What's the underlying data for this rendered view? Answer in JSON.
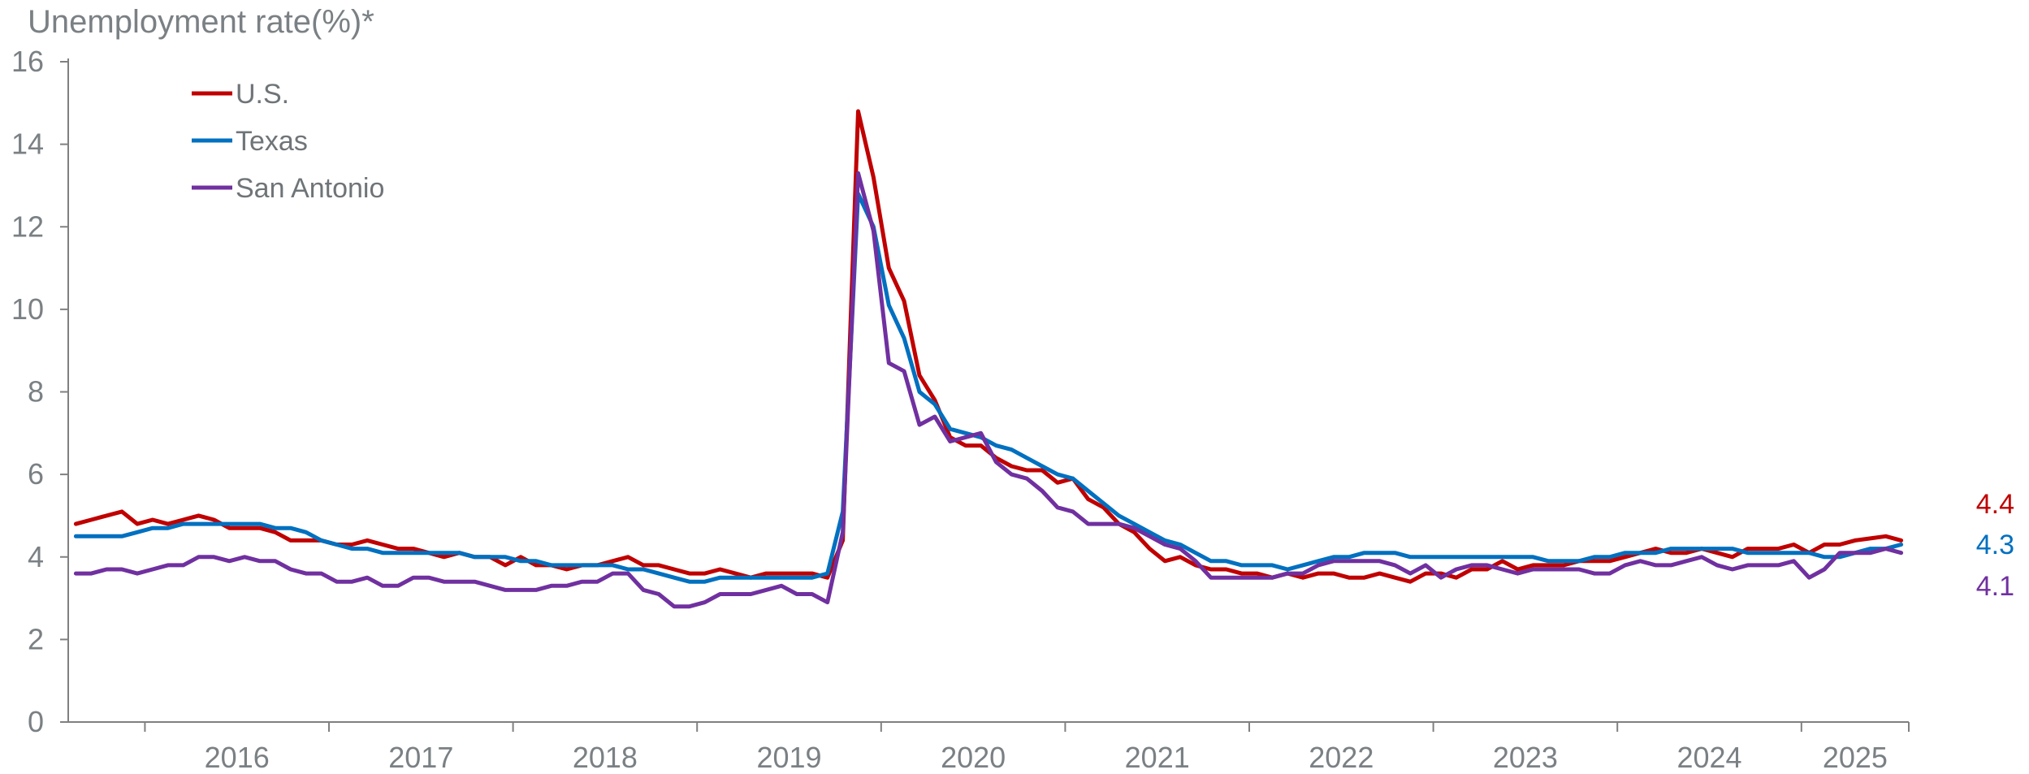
{
  "chart_data": {
    "type": "line",
    "title": "",
    "ylabel": "Unemployment rate(%)*",
    "xlabel": "",
    "ylim": [
      0,
      16
    ],
    "yticks": [
      "0",
      "2",
      "4",
      "6",
      "8",
      "10",
      "12",
      "14",
      "16"
    ],
    "x_start": "2015-08",
    "x_end": "2025-08",
    "xtick_labels": [
      "2016",
      "2017",
      "2018",
      "2019",
      "2020",
      "2021",
      "2022",
      "2023",
      "2024",
      "2025"
    ],
    "grid": false,
    "legend_position": "top-left",
    "series": [
      {
        "name": "U.S.",
        "color": "#c00000",
        "end_label": "4.4",
        "values": [
          4.8,
          4.9,
          5.0,
          5.1,
          4.8,
          4.9,
          4.8,
          4.9,
          5.0,
          4.9,
          4.7,
          4.7,
          4.7,
          4.6,
          4.4,
          4.4,
          4.4,
          4.3,
          4.3,
          4.4,
          4.3,
          4.2,
          4.2,
          4.1,
          4.0,
          4.1,
          4.0,
          4.0,
          3.8,
          4.0,
          3.8,
          3.8,
          3.7,
          3.8,
          3.8,
          3.9,
          4.0,
          3.8,
          3.8,
          3.7,
          3.6,
          3.6,
          3.7,
          3.6,
          3.5,
          3.6,
          3.6,
          3.6,
          3.6,
          3.5,
          4.4,
          14.8,
          13.2,
          11.0,
          10.2,
          8.4,
          7.8,
          6.9,
          6.7,
          6.7,
          6.4,
          6.2,
          6.1,
          6.1,
          5.8,
          5.9,
          5.4,
          5.2,
          4.8,
          4.6,
          4.2,
          3.9,
          4.0,
          3.8,
          3.7,
          3.7,
          3.6,
          3.6,
          3.5,
          3.6,
          3.5,
          3.6,
          3.6,
          3.5,
          3.5,
          3.6,
          3.5,
          3.4,
          3.6,
          3.6,
          3.5,
          3.7,
          3.7,
          3.9,
          3.7,
          3.8,
          3.8,
          3.8,
          3.9,
          3.9,
          3.9,
          4.0,
          4.1,
          4.2,
          4.1,
          4.1,
          4.2,
          4.1,
          4.0,
          4.2,
          4.2,
          4.2,
          4.3,
          4.1,
          4.3,
          4.3,
          4.4,
          4.45,
          4.5,
          4.4
        ]
      },
      {
        "name": "Texas",
        "color": "#0070c0",
        "end_label": "4.3",
        "values": [
          4.5,
          4.5,
          4.5,
          4.5,
          4.6,
          4.7,
          4.7,
          4.8,
          4.8,
          4.8,
          4.8,
          4.8,
          4.8,
          4.7,
          4.7,
          4.6,
          4.4,
          4.3,
          4.2,
          4.2,
          4.1,
          4.1,
          4.1,
          4.1,
          4.1,
          4.1,
          4.0,
          4.0,
          4.0,
          3.9,
          3.9,
          3.8,
          3.8,
          3.8,
          3.8,
          3.8,
          3.7,
          3.7,
          3.6,
          3.5,
          3.4,
          3.4,
          3.5,
          3.5,
          3.5,
          3.5,
          3.5,
          3.5,
          3.5,
          3.6,
          5.1,
          12.8,
          12.0,
          10.1,
          9.3,
          8.0,
          7.7,
          7.1,
          7.0,
          6.9,
          6.7,
          6.6,
          6.4,
          6.2,
          6.0,
          5.9,
          5.6,
          5.3,
          5.0,
          4.8,
          4.6,
          4.4,
          4.3,
          4.1,
          3.9,
          3.9,
          3.8,
          3.8,
          3.8,
          3.7,
          3.8,
          3.9,
          4.0,
          4.0,
          4.1,
          4.1,
          4.1,
          4.0,
          4.0,
          4.0,
          4.0,
          4.0,
          4.0,
          4.0,
          4.0,
          4.0,
          3.9,
          3.9,
          3.9,
          4.0,
          4.0,
          4.1,
          4.1,
          4.1,
          4.2,
          4.2,
          4.2,
          4.2,
          4.2,
          4.1,
          4.1,
          4.1,
          4.1,
          4.1,
          4.0,
          4.0,
          4.1,
          4.2,
          4.2,
          4.3
        ]
      },
      {
        "name": "San Antonio",
        "color": "#7030a0",
        "end_label": "4.1",
        "values": [
          3.6,
          3.6,
          3.7,
          3.7,
          3.6,
          3.7,
          3.8,
          3.8,
          4.0,
          4.0,
          3.9,
          4.0,
          3.9,
          3.9,
          3.7,
          3.6,
          3.6,
          3.4,
          3.4,
          3.5,
          3.3,
          3.3,
          3.5,
          3.5,
          3.4,
          3.4,
          3.4,
          3.3,
          3.2,
          3.2,
          3.2,
          3.3,
          3.3,
          3.4,
          3.4,
          3.6,
          3.6,
          3.2,
          3.1,
          2.8,
          2.8,
          2.9,
          3.1,
          3.1,
          3.1,
          3.2,
          3.3,
          3.1,
          3.1,
          2.9,
          4.6,
          13.3,
          11.9,
          8.7,
          8.5,
          7.2,
          7.4,
          6.8,
          6.9,
          7.0,
          6.3,
          6.0,
          5.9,
          5.6,
          5.2,
          5.1,
          4.8,
          4.8,
          4.8,
          4.7,
          4.5,
          4.3,
          4.2,
          3.9,
          3.5,
          3.5,
          3.5,
          3.5,
          3.5,
          3.6,
          3.6,
          3.8,
          3.9,
          3.9,
          3.9,
          3.9,
          3.8,
          3.6,
          3.8,
          3.5,
          3.7,
          3.8,
          3.8,
          3.7,
          3.6,
          3.7,
          3.7,
          3.7,
          3.7,
          3.6,
          3.6,
          3.8,
          3.9,
          3.8,
          3.8,
          3.9,
          4.0,
          3.8,
          3.7,
          3.8,
          3.8,
          3.8,
          3.9,
          3.5,
          3.7,
          4.1,
          4.1,
          4.1,
          4.2,
          4.1
        ]
      }
    ]
  }
}
